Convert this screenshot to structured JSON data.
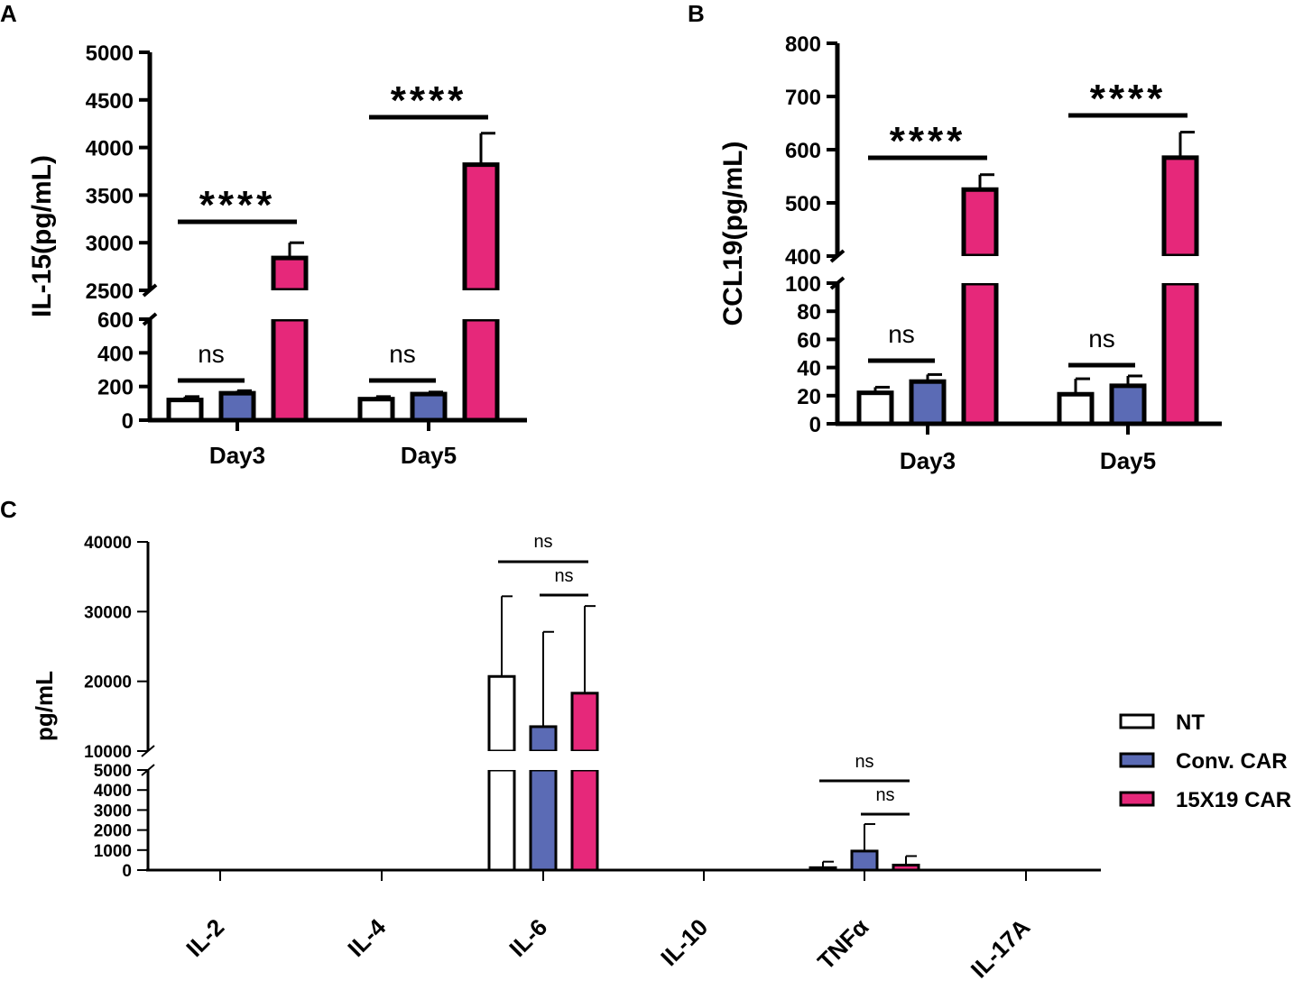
{
  "colors": {
    "NT": "#ffffff",
    "Conv. CAR": "#5b6bb5",
    "15X19 CAR": "#e6287a"
  },
  "legend": [
    "NT",
    "Conv. CAR",
    "15X19 CAR"
  ],
  "chart_data": [
    {
      "panel": "A",
      "type": "bar",
      "ylabel": "IL-15(pg/mL)",
      "categories": [
        "Day3",
        "Day5"
      ],
      "y_axis_break": {
        "lower_range": [
          0,
          600
        ],
        "upper_range": [
          2500,
          5000
        ]
      },
      "lower_ticks": [
        "0",
        "200",
        "400",
        "600"
      ],
      "upper_ticks": [
        "2500",
        "3000",
        "3500",
        "4000",
        "4500",
        "5000"
      ],
      "series": [
        {
          "name": "NT",
          "values": [
            120,
            125
          ],
          "errors": [
            20,
            15
          ]
        },
        {
          "name": "Conv. CAR",
          "values": [
            160,
            155
          ],
          "errors": [
            15,
            12
          ]
        },
        {
          "name": "15X19 CAR",
          "values": [
            2840,
            3820
          ],
          "errors": [
            160,
            330
          ]
        }
      ],
      "annotations": [
        {
          "category": "Day3",
          "groups": [
            "NT",
            "Conv. CAR"
          ],
          "label": "ns"
        },
        {
          "category": "Day3",
          "groups": [
            "NT",
            "15X19 CAR"
          ],
          "label": "****"
        },
        {
          "category": "Day5",
          "groups": [
            "NT",
            "Conv. CAR"
          ],
          "label": "ns"
        },
        {
          "category": "Day5",
          "groups": [
            "NT",
            "15X19 CAR"
          ],
          "label": "****"
        }
      ]
    },
    {
      "panel": "B",
      "type": "bar",
      "ylabel": "CCL19(pg/mL)",
      "categories": [
        "Day3",
        "Day5"
      ],
      "y_axis_break": {
        "lower_range": [
          0,
          100
        ],
        "upper_range": [
          400,
          800
        ]
      },
      "lower_ticks": [
        "0",
        "20",
        "40",
        "60",
        "80",
        "100"
      ],
      "upper_ticks": [
        "400",
        "500",
        "600",
        "700",
        "800"
      ],
      "series": [
        {
          "name": "NT",
          "values": [
            22,
            21
          ],
          "errors": [
            4,
            11
          ]
        },
        {
          "name": "Conv. CAR",
          "values": [
            30,
            27
          ],
          "errors": [
            5,
            7
          ]
        },
        {
          "name": "15X19 CAR",
          "values": [
            525,
            585
          ],
          "errors": [
            28,
            48
          ]
        }
      ],
      "annotations": [
        {
          "category": "Day3",
          "groups": [
            "NT",
            "Conv. CAR"
          ],
          "label": "ns"
        },
        {
          "category": "Day3",
          "groups": [
            "NT",
            "15X19 CAR"
          ],
          "label": "****"
        },
        {
          "category": "Day5",
          "groups": [
            "NT",
            "Conv. CAR"
          ],
          "label": "ns"
        },
        {
          "category": "Day5",
          "groups": [
            "NT",
            "15X19 CAR"
          ],
          "label": "****"
        }
      ]
    },
    {
      "panel": "C",
      "type": "bar",
      "ylabel": "pg/mL",
      "categories": [
        "IL-2",
        "IL-4",
        "IL-6",
        "IL-10",
        "TNFα",
        "IL-17A"
      ],
      "y_axis_break": {
        "lower_range": [
          0,
          5000
        ],
        "upper_range": [
          10000,
          40000
        ]
      },
      "lower_ticks": [
        "0",
        "1000",
        "2000",
        "3000",
        "4000",
        "5000"
      ],
      "upper_ticks": [
        "10000",
        "20000",
        "30000",
        "40000"
      ],
      "series": [
        {
          "name": "NT",
          "values": [
            0,
            0,
            20700,
            0,
            120,
            0
          ],
          "errors": [
            0,
            0,
            11500,
            0,
            300,
            0
          ]
        },
        {
          "name": "Conv. CAR",
          "values": [
            0,
            0,
            13500,
            0,
            950,
            0
          ],
          "errors": [
            0,
            0,
            13600,
            0,
            1350,
            0
          ]
        },
        {
          "name": "15X19 CAR",
          "values": [
            0,
            0,
            18300,
            0,
            250,
            0
          ],
          "errors": [
            0,
            0,
            12500,
            0,
            450,
            0
          ]
        }
      ],
      "annotations": [
        {
          "category": "IL-6",
          "groups": [
            "NT",
            "15X19 CAR"
          ],
          "label": "ns"
        },
        {
          "category": "IL-6",
          "groups": [
            "Conv. CAR",
            "15X19 CAR"
          ],
          "label": "ns"
        },
        {
          "category": "TNFα",
          "groups": [
            "NT",
            "15X19 CAR"
          ],
          "label": "ns"
        },
        {
          "category": "TNFα",
          "groups": [
            "Conv. CAR",
            "15X19 CAR"
          ],
          "label": "ns"
        }
      ]
    }
  ]
}
